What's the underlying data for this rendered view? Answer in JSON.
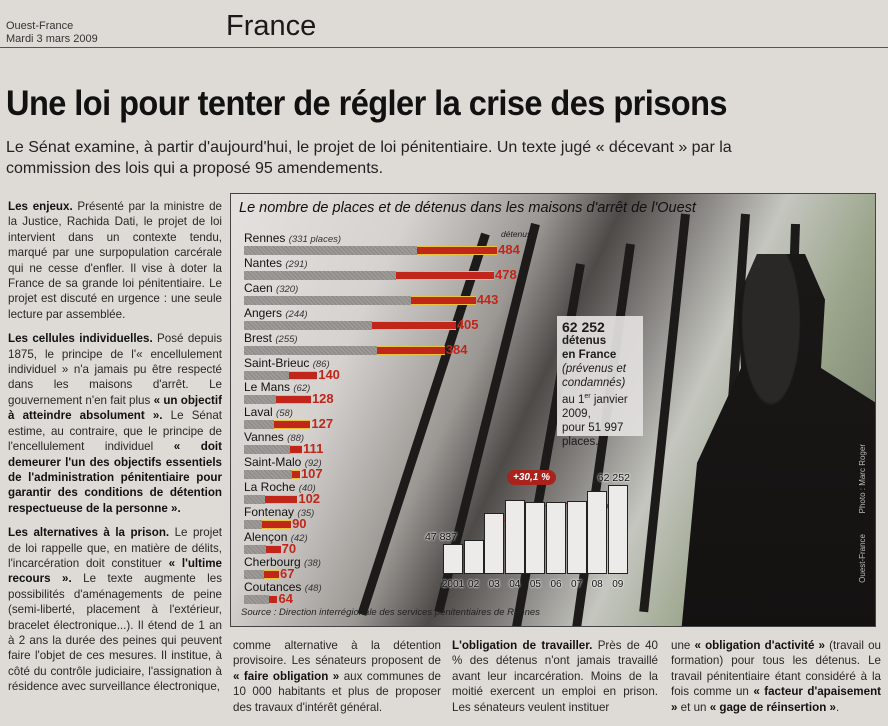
{
  "header": {
    "publication": "Ouest-France",
    "date": "Mardi 3 mars 2009",
    "section": "France"
  },
  "article": {
    "headline": "Une loi pour tenter de régler la crise des prisons",
    "lede": "Le Sénat examine, à partir d'aujourd'hui, le projet de loi pénitentiaire. Un texte jugé « décevant » par la commission des lois qui a proposé 95 amendements.",
    "left_column": [
      [
        {
          "t": "Les enjeux.",
          "b": true
        },
        {
          "t": " Présenté par la ministre de la Justice, Rachida Dati, le projet de loi intervient dans un contexte tendu, marqué par une surpopulation carcérale qui ne cesse d'enfler. Il vise à doter la France de sa grande loi pénitentiaire. Le projet est discuté en urgence : une seule lecture par assemblée."
        }
      ],
      [
        {
          "t": "Les cellules individuelles.",
          "b": true
        },
        {
          "t": " Posé depuis 1875, le principe de l'« encellulement individuel » n'a jamais pu être respecté dans les maisons d'arrêt. Le gouvernement n'en fait plus "
        },
        {
          "t": "« un objectif à atteindre absolument ».",
          "b": true
        },
        {
          "t": " Le Sénat estime, au contraire, que le principe de l'encellulement individuel "
        },
        {
          "t": "« doit demeurer l'un des objectifs essentiels de l'administration pénitentiaire pour garantir des conditions de détention respectueuse de la personne ».",
          "b": true
        }
      ],
      [
        {
          "t": "Les alternatives à la prison.",
          "b": true
        },
        {
          "t": " Le projet de loi rappelle que, en matière de délits, l'incarcération doit constituer "
        },
        {
          "t": "« l'ultime recours ».",
          "b": true
        },
        {
          "t": " Le texte augmente les possibilités d'aménagements de peine (semi-liberté, placement à l'extérieur, bracelet électronique...). Il étend de 1 an à 2 ans la durée des peines qui peuvent faire l'objet de ces mesures. Il institue, à côté du contrôle judiciaire, l'assignation à résidence avec surveillance électronique,"
        }
      ]
    ],
    "col2": [
      [
        {
          "t": "comme alternative à la détention provisoire. Les sénateurs proposent de "
        },
        {
          "t": "« faire obligation »",
          "b": true
        },
        {
          "t": " aux communes de 10 000 habitants et plus de proposer des travaux d'intérêt général."
        }
      ]
    ],
    "col3": [
      [
        {
          "t": "L'obligation de travailler.",
          "b": true
        },
        {
          "t": " Près de 40 % des détenus n'ont jamais travaillé avant leur incarcération. Moins de la moitié exercent un emploi en prison. Les sénateurs veulent instituer"
        }
      ]
    ],
    "col4": [
      [
        {
          "t": "une "
        },
        {
          "t": "« obligation d'activité »",
          "b": true
        },
        {
          "t": " (travail ou formation) pour tous les détenus. Le travail pénitentiaire étant considéré à la fois comme un "
        },
        {
          "t": "« facteur d'apaisement »",
          "b": true
        },
        {
          "t": " et un "
        },
        {
          "t": "« gage de réinsertion »",
          "b": true
        },
        {
          "t": "."
        }
      ]
    ]
  },
  "graphic": {
    "title": "Le nombre de places et de détenus dans les maisons d'arrêt de l'Ouest",
    "detenus_header": "détenus",
    "places_suffix": " places",
    "infobox": {
      "number": "62 252",
      "line1": "détenus",
      "line2": "en France",
      "line3": "(prévenus et condamnés)",
      "line4a": "au 1",
      "line4sup": "er",
      "line4b": " janvier 2009,",
      "line5": "pour 51 997 places."
    },
    "growth_label": "+30,1 %",
    "source": "Source : Direction interrégionale des services pénitentiaires de Rennes",
    "photo_credit": "Photo : Marc Roger",
    "copyright": "Ouest-France"
  },
  "chart_data": [
    {
      "type": "bar",
      "orientation": "horizontal",
      "title": "Le nombre de places et de détenus dans les maisons d'arrêt de l'Ouest",
      "categories": [
        "Rennes",
        "Nantes",
        "Caen",
        "Angers",
        "Brest",
        "Saint-Brieuc",
        "Le Mans",
        "Laval",
        "Vannes",
        "Saint-Malo",
        "La Roche",
        "Fontenay",
        "Alençon",
        "Cherbourg",
        "Coutances"
      ],
      "series": [
        {
          "name": "places",
          "values": [
            331,
            291,
            320,
            244,
            255,
            86,
            62,
            58,
            88,
            92,
            40,
            35,
            42,
            38,
            48
          ]
        },
        {
          "name": "détenus",
          "values": [
            484,
            478,
            443,
            405,
            384,
            140,
            128,
            127,
            111,
            107,
            102,
            90,
            70,
            67,
            64
          ]
        }
      ],
      "colors": {
        "places": "#9a9794",
        "detenus": "#c0261a"
      }
    },
    {
      "type": "bar",
      "title": "Détenus en France",
      "categories": [
        "2001",
        "02",
        "03",
        "04",
        "05",
        "06",
        "07",
        "08",
        "09"
      ],
      "values": [
        47837,
        48800,
        55400,
        58700,
        58200,
        58200,
        58400,
        60700,
        62252
      ],
      "labeled": {
        "2001": "47 837",
        "09": "62 252"
      },
      "ylim": [
        40500,
        64000
      ]
    }
  ]
}
